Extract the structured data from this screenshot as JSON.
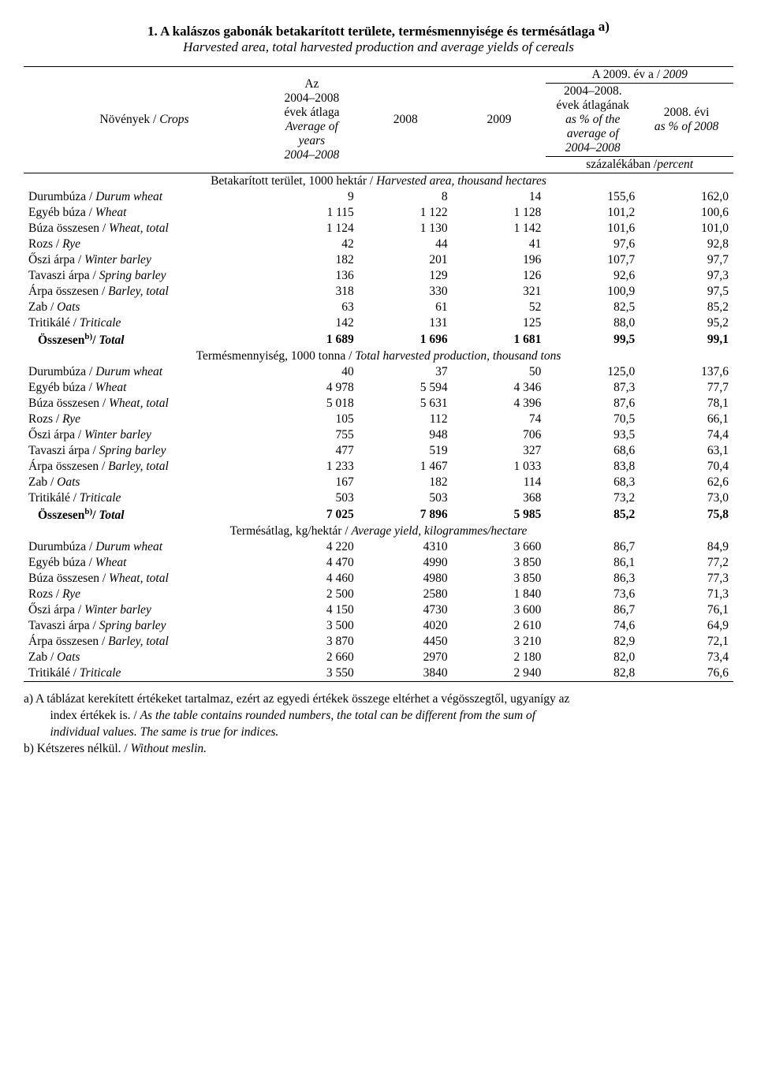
{
  "title": {
    "main": "1. A kalászos gabonák betakarított területe, termésmennyisége és termésátlaga",
    "sup": "a)",
    "sub": "Harvested area, total harvested production and average yields of cereals"
  },
  "header": {
    "crops": "Növények / ",
    "crops_it": "Crops",
    "col_avg_line1": "Az",
    "col_avg_line2": "2004–2008",
    "col_avg_line3": "évek átlaga",
    "col_avg_line4": "Average of",
    "col_avg_line5": "years",
    "col_avg_line6": "2004–2008",
    "col_2008": "2008",
    "col_2009": "2009",
    "top_right": "A 2009. év a / ",
    "top_right_it": "2009",
    "pct_line1": "2004–2008.",
    "pct_line2": "évek átlagának",
    "pct_line3": "as % of the",
    "pct_line4": "average of",
    "pct_line5": "2004–2008",
    "col_2008evi_line1": "2008. évi",
    "col_2008evi_line2": "as % of 2008",
    "pct_footer": "százalékában /",
    "pct_footer_it": "percent"
  },
  "sections": [
    {
      "title_plain": "Betakarított terület, 1000 hektár / ",
      "title_it": "Harvested area, thousand hectares",
      "rows": [
        {
          "label": "Durumbúza / ",
          "label_it": "Durum wheat",
          "v": [
            "9",
            "8",
            "14",
            "155,6",
            "162,0"
          ]
        },
        {
          "label": "Egyéb búza / ",
          "label_it": "Wheat",
          "v": [
            "1 115",
            "1 122",
            "1 128",
            "101,2",
            "100,6"
          ]
        },
        {
          "label": "Búza összesen /  ",
          "label_it": "Wheat, total",
          "v": [
            "1 124",
            "1 130",
            "1 142",
            "101,6",
            "101,0"
          ]
        },
        {
          "label": "Rozs / ",
          "label_it": "Rye",
          "v": [
            "42",
            "44",
            "41",
            "97,6",
            "92,8"
          ]
        },
        {
          "label": "Őszi árpa / ",
          "label_it": "Winter barley",
          "v": [
            "182",
            "201",
            "196",
            "107,7",
            "97,7"
          ]
        },
        {
          "label": "Tavaszi árpa /  ",
          "label_it": "Spring barley",
          "v": [
            "136",
            "129",
            "126",
            "92,6",
            "97,3"
          ]
        },
        {
          "label": "Árpa összesen / ",
          "label_it": "Barley, total",
          "v": [
            "318",
            "330",
            "321",
            "100,9",
            "97,5"
          ]
        },
        {
          "label": "Zab / ",
          "label_it": "Oats",
          "v": [
            "63",
            "61",
            "52",
            "82,5",
            "85,2"
          ]
        },
        {
          "label": "Tritikálé / ",
          "label_it": "Triticale",
          "v": [
            "142",
            "131",
            "125",
            "88,0",
            "95,2"
          ]
        }
      ],
      "total": {
        "label_bold": "Összesen",
        "sup": "b)",
        "label_after": "/",
        "label_it": " Total",
        "v": [
          "1 689",
          "1 696",
          "1 681",
          "99,5",
          "99,1"
        ]
      }
    },
    {
      "title_plain": "Termésmennyiség, 1000 tonna / ",
      "title_it": "Total harvested production, thousand tons",
      "rows": [
        {
          "label": "Durumbúza / ",
          "label_it": "Durum wheat",
          "v": [
            "40",
            "37",
            "50",
            "125,0",
            "137,6"
          ]
        },
        {
          "label": "Egyéb búza / ",
          "label_it": "Wheat",
          "v": [
            "4 978",
            "5 594",
            "4 346",
            "87,3",
            "77,7"
          ]
        },
        {
          "label": "Búza összesen /  ",
          "label_it": "Wheat, total",
          "v": [
            "5 018",
            "5 631",
            "4 396",
            "87,6",
            "78,1"
          ]
        },
        {
          "label": "Rozs / ",
          "label_it": "Rye",
          "v": [
            "105",
            "112",
            "74",
            "70,5",
            "66,1"
          ]
        },
        {
          "label": "Őszi árpa / ",
          "label_it": "Winter barley",
          "v": [
            "755",
            "948",
            "706",
            "93,5",
            "74,4"
          ]
        },
        {
          "label": "Tavaszi árpa /  ",
          "label_it": "Spring barley",
          "v": [
            "477",
            "519",
            "327",
            "68,6",
            "63,1"
          ]
        },
        {
          "label": "Árpa összesen / ",
          "label_it": "Barley, total",
          "v": [
            "1 233",
            "1 467",
            "1 033",
            "83,8",
            "70,4"
          ]
        },
        {
          "label": "Zab / ",
          "label_it": "Oats",
          "v": [
            "167",
            "182",
            "114",
            "68,3",
            "62,6"
          ]
        },
        {
          "label": "Tritikálé / ",
          "label_it": "Triticale",
          "v": [
            "503",
            "503",
            "368",
            "73,2",
            "73,0"
          ]
        }
      ],
      "total": {
        "label_bold": "Összesen",
        "sup": "b)",
        "label_after": "/",
        "label_it": " Total",
        "v": [
          "7 025",
          "7 896",
          "5 985",
          "85,2",
          "75,8"
        ]
      }
    },
    {
      "title_plain": "Termésátlag, kg/hektár / ",
      "title_it": "Average yield, kilogrammes/hectare",
      "rows": [
        {
          "label": "Durumbúza / ",
          "label_it": "Durum wheat",
          "v": [
            "4 220",
            "4310",
            "3 660",
            "86,7",
            "84,9"
          ]
        },
        {
          "label": "Egyéb búza / ",
          "label_it": "Wheat",
          "v": [
            "4 470",
            "4990",
            "3 850",
            "86,1",
            "77,2"
          ]
        },
        {
          "label": "Búza összesen /  ",
          "label_it": "Wheat, total",
          "v": [
            "4 460",
            "4980",
            "3 850",
            "86,3",
            "77,3"
          ]
        },
        {
          "label": "Rozs / ",
          "label_it": "Rye",
          "v": [
            "2 500",
            "2580",
            "1 840",
            "73,6",
            "71,3"
          ]
        },
        {
          "label": "Őszi árpa / ",
          "label_it": "Winter barley",
          "v": [
            "4 150",
            "4730",
            "3 600",
            "86,7",
            "76,1"
          ]
        },
        {
          "label": "Tavaszi árpa /  ",
          "label_it": "Spring barley",
          "v": [
            "3 500",
            "4020",
            "2 610",
            "74,6",
            "64,9"
          ]
        },
        {
          "label": "Árpa összesen / ",
          "label_it": "Barley, total",
          "v": [
            "3 870",
            "4450",
            "3 210",
            "82,9",
            "72,1"
          ]
        },
        {
          "label": "Zab / ",
          "label_it": "Oats",
          "v": [
            "2 660",
            "2970",
            "2 180",
            "82,0",
            "73,4"
          ]
        },
        {
          "label": "Tritikálé / ",
          "label_it": "Triticale",
          "v": [
            "3 550",
            "3840",
            "2 940",
            "82,8",
            "76,6"
          ]
        }
      ],
      "total": null
    }
  ],
  "footnotes": {
    "a_line1": "a)  A táblázat kerekített értékeket tartalmaz, ezért az egyedi értékek összege eltérhet a végösszegtől, ugyanígy az",
    "a_line2_plain": "index értékek is. / ",
    "a_line2_it": "As the table contains rounded numbers, the total can be different from the sum of",
    "a_line3_it": "individual values. The same is true for indices.",
    "b_plain": "b)  Kétszeres nélkül. / ",
    "b_it": "Without meslin."
  }
}
